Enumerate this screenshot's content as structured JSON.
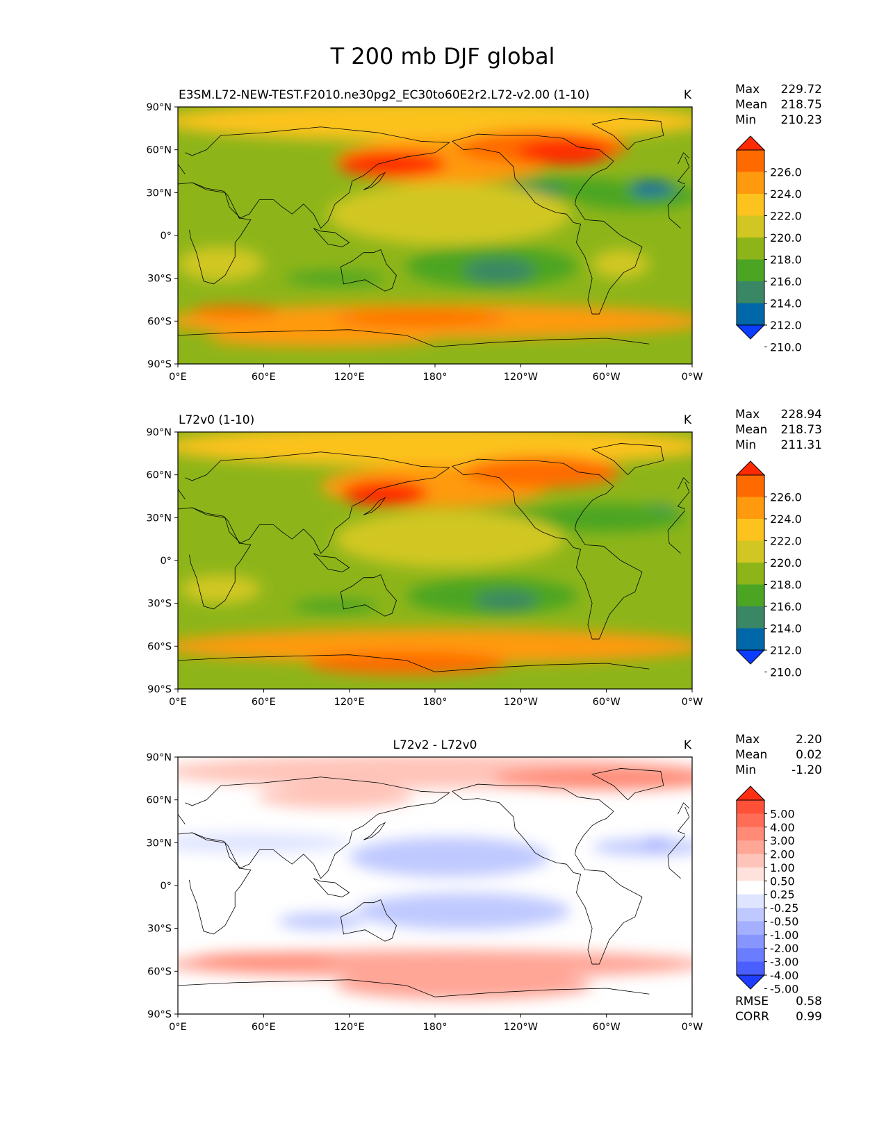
{
  "chart_data": {
    "figure_title": "T 200 mb DJF global",
    "x_ticks": [
      "0°E",
      "60°E",
      "120°E",
      "180°",
      "120°W",
      "60°W",
      "0°W"
    ],
    "y_ticks": [
      "90°N",
      "60°N",
      "30°N",
      "0°",
      "30°S",
      "60°S",
      "90°S"
    ],
    "xlim": [
      0,
      360
    ],
    "ylim": [
      -90,
      90
    ],
    "panels": [
      {
        "type": "heatmap",
        "title": "",
        "left_title": "E3SM.L72-NEW-TEST.F2010.ne30pg2_EC30to60E2r2.L72-v2.00 (1-10)",
        "units": "K",
        "stats": [
          {
            "label": "Max",
            "value": "229.72"
          },
          {
            "label": "Mean",
            "value": "218.75"
          },
          {
            "label": "Min",
            "value": "210.23"
          }
        ],
        "colorbar_levels": [
          "226.0",
          "224.0",
          "222.0",
          "220.0",
          "218.0",
          "216.0",
          "214.0",
          "212.0",
          "210.0"
        ],
        "colorbar_colors": [
          "#ff2a00",
          "#ff6a00",
          "#ff9a0f",
          "#fcc21e",
          "#d2c722",
          "#8db51a",
          "#4ba523",
          "#3a8765",
          "#0067a8",
          "#0a3dff"
        ]
      },
      {
        "type": "heatmap",
        "title": "",
        "left_title": "L72v0 (1-10)",
        "units": "K",
        "stats": [
          {
            "label": "Max",
            "value": "228.94"
          },
          {
            "label": "Mean",
            "value": "218.73"
          },
          {
            "label": "Min",
            "value": "211.31"
          }
        ],
        "colorbar_levels": [
          "226.0",
          "224.0",
          "222.0",
          "220.0",
          "218.0",
          "216.0",
          "214.0",
          "212.0",
          "210.0"
        ],
        "colorbar_colors": [
          "#ff2a00",
          "#ff6a00",
          "#ff9a0f",
          "#fcc21e",
          "#d2c722",
          "#8db51a",
          "#4ba523",
          "#3a8765",
          "#0067a8",
          "#0a3dff"
        ]
      },
      {
        "type": "heatmap",
        "title": "L72v2 - L72v0",
        "left_title": "",
        "units": "K",
        "stats": [
          {
            "label": "Max",
            "value": "2.20"
          },
          {
            "label": "Mean",
            "value": "0.02"
          },
          {
            "label": "Min",
            "value": "-1.20"
          }
        ],
        "colorbar_levels": [
          "5.00",
          "4.00",
          "3.00",
          "2.00",
          "1.00",
          "0.50",
          "0.25",
          "-0.25",
          "-0.50",
          "-1.00",
          "-2.00",
          "-3.00",
          "-4.00",
          "-5.00"
        ],
        "colorbar_colors": [
          "#ff2f12",
          "#ff5038",
          "#ff6d56",
          "#ff8a76",
          "#ffa697",
          "#ffc4b9",
          "#ffe2dc",
          "#ffffff",
          "#dfe4ff",
          "#c0c9ff",
          "#a4b0ff",
          "#8796ff",
          "#6a7cff",
          "#4b5fff",
          "#1f3dff"
        ],
        "metrics": [
          {
            "label": "RMSE",
            "value": "0.58"
          },
          {
            "label": "CORR",
            "value": "0.99"
          }
        ]
      }
    ]
  }
}
